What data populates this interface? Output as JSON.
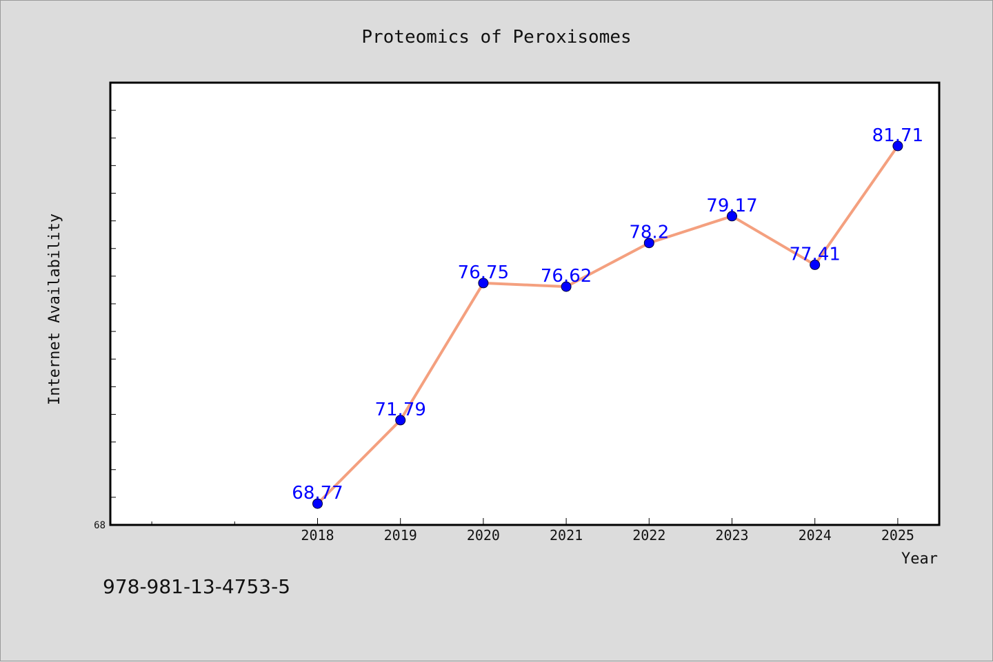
{
  "chart_data": {
    "type": "line",
    "title": "Proteomics of Peroxisomes",
    "xlabel": "Year",
    "ylabel": "Internet Availability",
    "x": [
      "2018",
      "2019",
      "2020",
      "2021",
      "2022",
      "2023",
      "2024",
      "2025"
    ],
    "values": [
      68.77,
      71.79,
      76.75,
      76.62,
      78.2,
      79.17,
      77.41,
      81.71
    ],
    "data_labels": [
      "68.77",
      "71.79",
      "76.75",
      "76.62",
      "78.2",
      "79.17",
      "77.41",
      "81.71"
    ],
    "y_tick_labels": [
      "68"
    ],
    "ylim": [
      68,
      84
    ],
    "x_range": [
      2015.5,
      2025.5
    ],
    "line_color": "#f4a07f",
    "marker_color": "#0000ff",
    "grid": false,
    "legend": "none"
  },
  "footer": {
    "text": "978-981-13-4753-5"
  }
}
